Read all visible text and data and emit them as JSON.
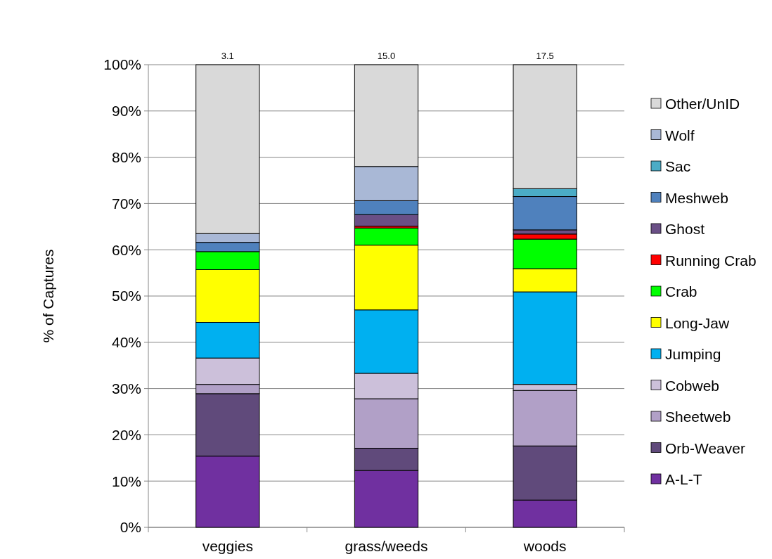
{
  "chart_data": {
    "type": "bar",
    "stacked": true,
    "ylabel": "% of Captures",
    "categories": [
      "veggies",
      "grass/weeds",
      "woods"
    ],
    "series": [
      {
        "name": "A-L-T",
        "color": "#7030a0",
        "values": [
          15.4,
          12.3,
          5.9
        ]
      },
      {
        "name": "Orb-Weaver",
        "color": "#604a7b",
        "values": [
          13.5,
          4.8,
          11.7
        ]
      },
      {
        "name": "Sheetweb",
        "color": "#b1a0c7",
        "values": [
          2.0,
          10.7,
          12.0
        ]
      },
      {
        "name": "Cobweb",
        "color": "#ccc0da",
        "values": [
          5.7,
          5.5,
          1.3
        ]
      },
      {
        "name": "Jumping",
        "color": "#00b0f0",
        "values": [
          7.7,
          13.7,
          20.0
        ]
      },
      {
        "name": "Long-Jaw",
        "color": "#ffff00",
        "values": [
          11.4,
          14.0,
          5.0
        ]
      },
      {
        "name": "Crab",
        "color": "#00ff00",
        "values": [
          3.9,
          3.7,
          6.4
        ]
      },
      {
        "name": "Running Crab",
        "color": "#ff0000",
        "values": [
          0,
          0.4,
          1.1
        ]
      },
      {
        "name": "Ghost",
        "color": "#6a4f86",
        "values": [
          0,
          2.5,
          0.9
        ]
      },
      {
        "name": "Meshweb",
        "color": "#4f81bd",
        "values": [
          2.0,
          3.0,
          7.2
        ]
      },
      {
        "name": "Sac",
        "color": "#4bacc6",
        "values": [
          0,
          0,
          1.7
        ]
      },
      {
        "name": "Wolf",
        "color": "#a9b8d6",
        "values": [
          1.9,
          7.4,
          0
        ]
      },
      {
        "name": "Other/UnID",
        "color": "#d9d9d9",
        "values": [
          36.5,
          22.0,
          26.8
        ]
      }
    ],
    "annotations": [
      {
        "text": "3.1",
        "x": "veggies",
        "y": 100
      },
      {
        "text": "15.0",
        "x": "grass/weeds",
        "y": 100
      },
      {
        "text": "17.5",
        "x": "woods",
        "y": 100
      }
    ],
    "ylim": [
      0,
      100
    ],
    "yticks": [
      {
        "value": 0,
        "label": "0%"
      },
      {
        "value": 10,
        "label": "10%"
      },
      {
        "value": 20,
        "label": "20%"
      },
      {
        "value": 30,
        "label": "30%"
      },
      {
        "value": 40,
        "label": "40%"
      },
      {
        "value": 50,
        "label": "50%"
      },
      {
        "value": 60,
        "label": "60%"
      },
      {
        "value": 70,
        "label": "70%"
      },
      {
        "value": 80,
        "label": "80%"
      },
      {
        "value": 90,
        "label": "90%"
      },
      {
        "value": 100,
        "label": "100%"
      }
    ],
    "grid": "y",
    "legend": "right"
  }
}
